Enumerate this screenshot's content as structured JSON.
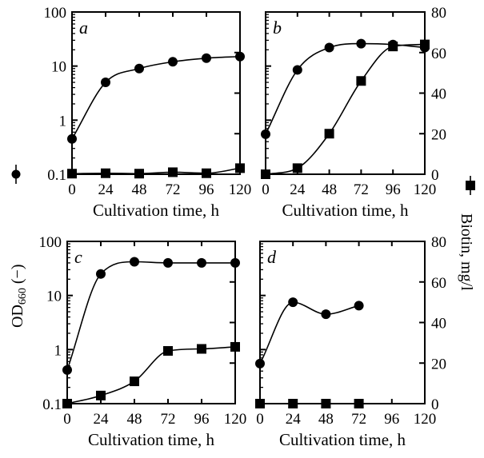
{
  "chart_data": [
    {
      "type": "line",
      "panel_label": "a",
      "xlabel": "Cultivation time, h",
      "x_ticks": [
        "0",
        "24",
        "48",
        "72",
        "96",
        "120"
      ],
      "xlim": [
        0,
        120
      ],
      "left_axis": {
        "scale": "log",
        "ylim": [
          0.1,
          100
        ],
        "ticks": [
          "0.1",
          "1",
          "10",
          "100"
        ]
      },
      "right_axis": {
        "scale": "linear",
        "ylim": [
          0,
          80
        ],
        "ticks": [],
        "tick_values": [
          0,
          20,
          40,
          60,
          80
        ]
      },
      "series": [
        {
          "marker": "circle",
          "axis": "left",
          "x": [
            0,
            24,
            48,
            72,
            96,
            120
          ],
          "y": [
            0.45,
            5.0,
            9.0,
            12.0,
            14.0,
            15.0
          ]
        },
        {
          "marker": "square",
          "axis": "right",
          "x": [
            0,
            24,
            48,
            72,
            96,
            120
          ],
          "y": [
            0.3,
            0.5,
            0.3,
            1.0,
            0.5,
            3.0
          ]
        }
      ]
    },
    {
      "type": "line",
      "panel_label": "b",
      "xlabel": "Cultivation time, h",
      "x_ticks": [
        "0",
        "24",
        "48",
        "72",
        "96",
        "120"
      ],
      "xlim": [
        0,
        120
      ],
      "left_axis": {
        "scale": "log",
        "ylim": [
          0.1,
          100
        ],
        "ticks": []
      },
      "right_axis": {
        "scale": "linear",
        "ylim": [
          0,
          80
        ],
        "ticks": [
          "0",
          "20",
          "40",
          "60",
          "80"
        ],
        "tick_values": [
          0,
          20,
          40,
          60,
          80
        ]
      },
      "series": [
        {
          "marker": "circle",
          "axis": "left",
          "x": [
            0,
            24,
            48,
            72,
            96,
            120
          ],
          "y": [
            0.55,
            8.5,
            22,
            26,
            25,
            22
          ]
        },
        {
          "marker": "square",
          "axis": "right",
          "x": [
            0,
            24,
            48,
            72,
            96,
            120
          ],
          "y": [
            0,
            3,
            20,
            46,
            63,
            64
          ]
        }
      ]
    },
    {
      "type": "line",
      "panel_label": "c",
      "xlabel": "Cultivation time, h",
      "x_ticks": [
        "0",
        "24",
        "48",
        "72",
        "96",
        "120"
      ],
      "xlim": [
        0,
        120
      ],
      "left_axis": {
        "scale": "log",
        "ylim": [
          0.1,
          100
        ],
        "ticks": [
          "0.1",
          "1",
          "10",
          "100"
        ]
      },
      "right_axis": {
        "scale": "linear",
        "ylim": [
          0,
          80
        ],
        "ticks": [],
        "tick_values": [
          0,
          20,
          40,
          60,
          80
        ]
      },
      "series": [
        {
          "marker": "circle",
          "axis": "left",
          "x": [
            0,
            24,
            48,
            72,
            96,
            120
          ],
          "y": [
            0.42,
            25,
            42,
            40,
            40,
            40
          ]
        },
        {
          "marker": "square",
          "axis": "right",
          "x": [
            0,
            24,
            48,
            72,
            96,
            120
          ],
          "y": [
            0,
            4,
            11,
            26,
            27,
            28
          ]
        }
      ]
    },
    {
      "type": "line",
      "panel_label": "d",
      "xlabel": "Cultivation time, h",
      "x_ticks": [
        "0",
        "24",
        "48",
        "72",
        "96",
        "120"
      ],
      "xlim": [
        0,
        120
      ],
      "left_axis": {
        "scale": "log",
        "ylim": [
          0.1,
          100
        ],
        "ticks": []
      },
      "right_axis": {
        "scale": "linear",
        "ylim": [
          0,
          80
        ],
        "ticks": [
          "0",
          "20",
          "40",
          "60",
          "80"
        ],
        "tick_values": [
          0,
          20,
          40,
          60,
          80
        ]
      },
      "series": [
        {
          "marker": "circle",
          "axis": "left",
          "x": [
            0,
            24,
            48,
            72
          ],
          "y": [
            0.55,
            7.5,
            4.5,
            6.5
          ]
        },
        {
          "marker": "square",
          "axis": "right",
          "x": [
            0,
            24,
            48,
            72
          ],
          "y": [
            0,
            0,
            0,
            0
          ]
        }
      ]
    }
  ],
  "labels": {
    "left_y_main": "OD",
    "left_y_sub": "660",
    "left_y_tail": " (−)",
    "right_y": "Biotin, mg/l"
  }
}
